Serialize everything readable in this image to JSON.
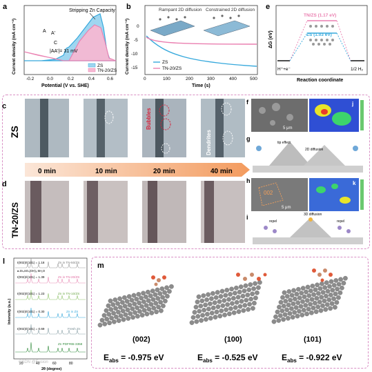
{
  "panel_letters": {
    "a": "a",
    "b": "b",
    "c": "c",
    "d": "d",
    "e": "e",
    "f": "f",
    "g": "g",
    "h": "h",
    "i": "i",
    "j": "j",
    "k": "k",
    "l": "l",
    "m": "m"
  },
  "panel_a": {
    "annotation_stripping": "Stripping Zn Capacity",
    "label_A": "A",
    "label_A_prime": "A'",
    "label_C": "C",
    "delta_label": "|AA'|= 31 mV",
    "xlabel": "Potential (V vs. SHE)",
    "ylabel": "Current density (mA cm⁻²)",
    "legend": [
      "ZS",
      "TN-20/ZS"
    ],
    "colors": {
      "ZS": "#35a8dc",
      "TN": "#ea7fb0"
    }
  },
  "panel_b": {
    "annotation_left": "Rampant 2D diffusion",
    "annotation_right": "Constrained 2D diffusion",
    "xlabel": "Time (s)",
    "ylabel": "Current density (mA cm⁻²)",
    "legend": [
      "ZS",
      "TN-20/ZS"
    ]
  },
  "panel_e": {
    "tn_label": "TN/ZS (1.17 eV)",
    "zs_label": "ZS (1.03 eV)",
    "xlabel": "Reaction coordinate",
    "ylabel": "ΔG (eV)",
    "left_state": "H⁺+e⁻",
    "right_state": "1/2 H₂"
  },
  "panel_c": {
    "row_label": "ZS",
    "bubbles": "Bubbles",
    "dendrites": "Dendrites"
  },
  "time_arrow": [
    "0 min",
    "10 min",
    "20 min",
    "40 min"
  ],
  "panel_d": {
    "row_label": "TN-20/ZS"
  },
  "panel_f": {
    "scale": "5 μm"
  },
  "panel_g": {
    "left_text": "tip effect",
    "mid_text": "2D diffusion"
  },
  "panel_h": {
    "facet": "002",
    "scale": "5 μm"
  },
  "panel_i": {
    "left_text": "repel",
    "right_text": "repel",
    "top_text": "3D diffusion"
  },
  "panel_l": {
    "ylabel": "Intensity (a.u.)",
    "xlabel": "2θ (degree)",
    "traces": [
      {
        "name": "Zn in TN-50/ZS",
        "ratio": "I(002)/I(101) = 1.18",
        "color": "#9a9a9a"
      },
      {
        "name": "Zn in TN-20/ZS",
        "ratio": "I(002)/I(101) = 1.39",
        "color": "#e88cb6"
      },
      {
        "name": "Zn in TN-10/ZS",
        "ratio": "I(002)/I(101) = 1.23",
        "color": "#8fc36a"
      },
      {
        "name": "Zn in ZS",
        "ratio": "I(002)/I(101) = 0.30",
        "color": "#35a8dc"
      },
      {
        "name": "Fresh Zn",
        "ratio": "I(002)/I(101) = 0.69",
        "color": "#8aa1a8"
      },
      {
        "name": "Zn PDF#65-3358",
        "ratio": "",
        "color": "#2f8a3a"
      }
    ],
    "byproduct": "♠ Zn₄SO₄(OH)₆·5H₂O",
    "xticks": [
      "20",
      "40",
      "60",
      "80"
    ]
  },
  "panel_m": {
    "facets": [
      "(002)",
      "(100)",
      "(101)"
    ],
    "energies": [
      "-0.975 eV",
      "-0.525 eV",
      "-0.922 eV"
    ],
    "eabs": "E",
    "eabs_sub": "abs"
  },
  "watermark": "CSDN @Fusion"
}
